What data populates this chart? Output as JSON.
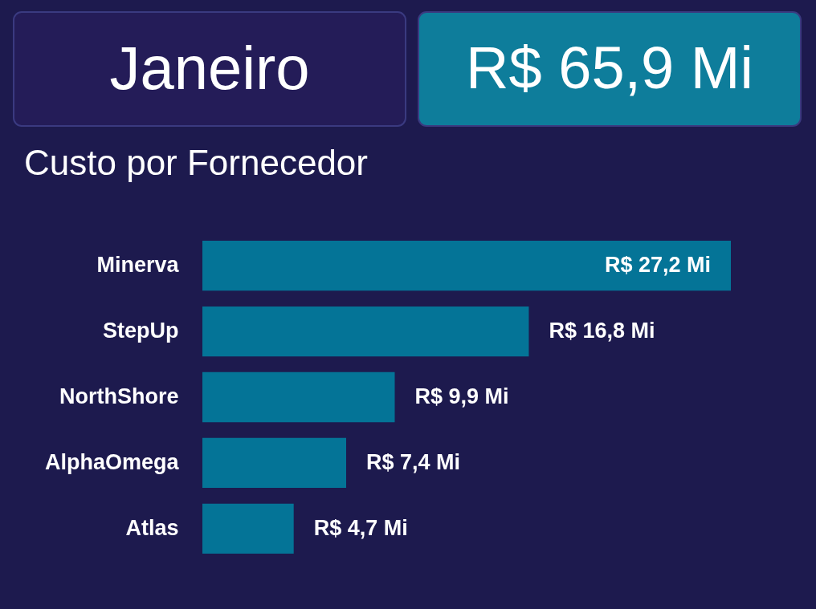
{
  "chart_data": {
    "type": "bar",
    "orientation": "horizontal",
    "relative": false,
    "title": "Custo por Fornecedor",
    "annotations": [
      "Janeiro",
      "R$ 65,9 Mi"
    ],
    "categories": [
      "Minerva",
      "StepUp",
      "NorthShore",
      "AlphaOmega",
      "Atlas"
    ],
    "values": [
      27.2,
      16.8,
      9.9,
      7.4,
      4.7
    ],
    "value_labels": [
      "R$ 27,2 Mi",
      "R$ 16,8 Mi",
      "R$ 9,9 Mi",
      "R$ 7,4 Mi",
      "R$ 4,7 Mi"
    ],
    "color": "#047497",
    "grid": false,
    "tick_labels": "y"
  }
}
